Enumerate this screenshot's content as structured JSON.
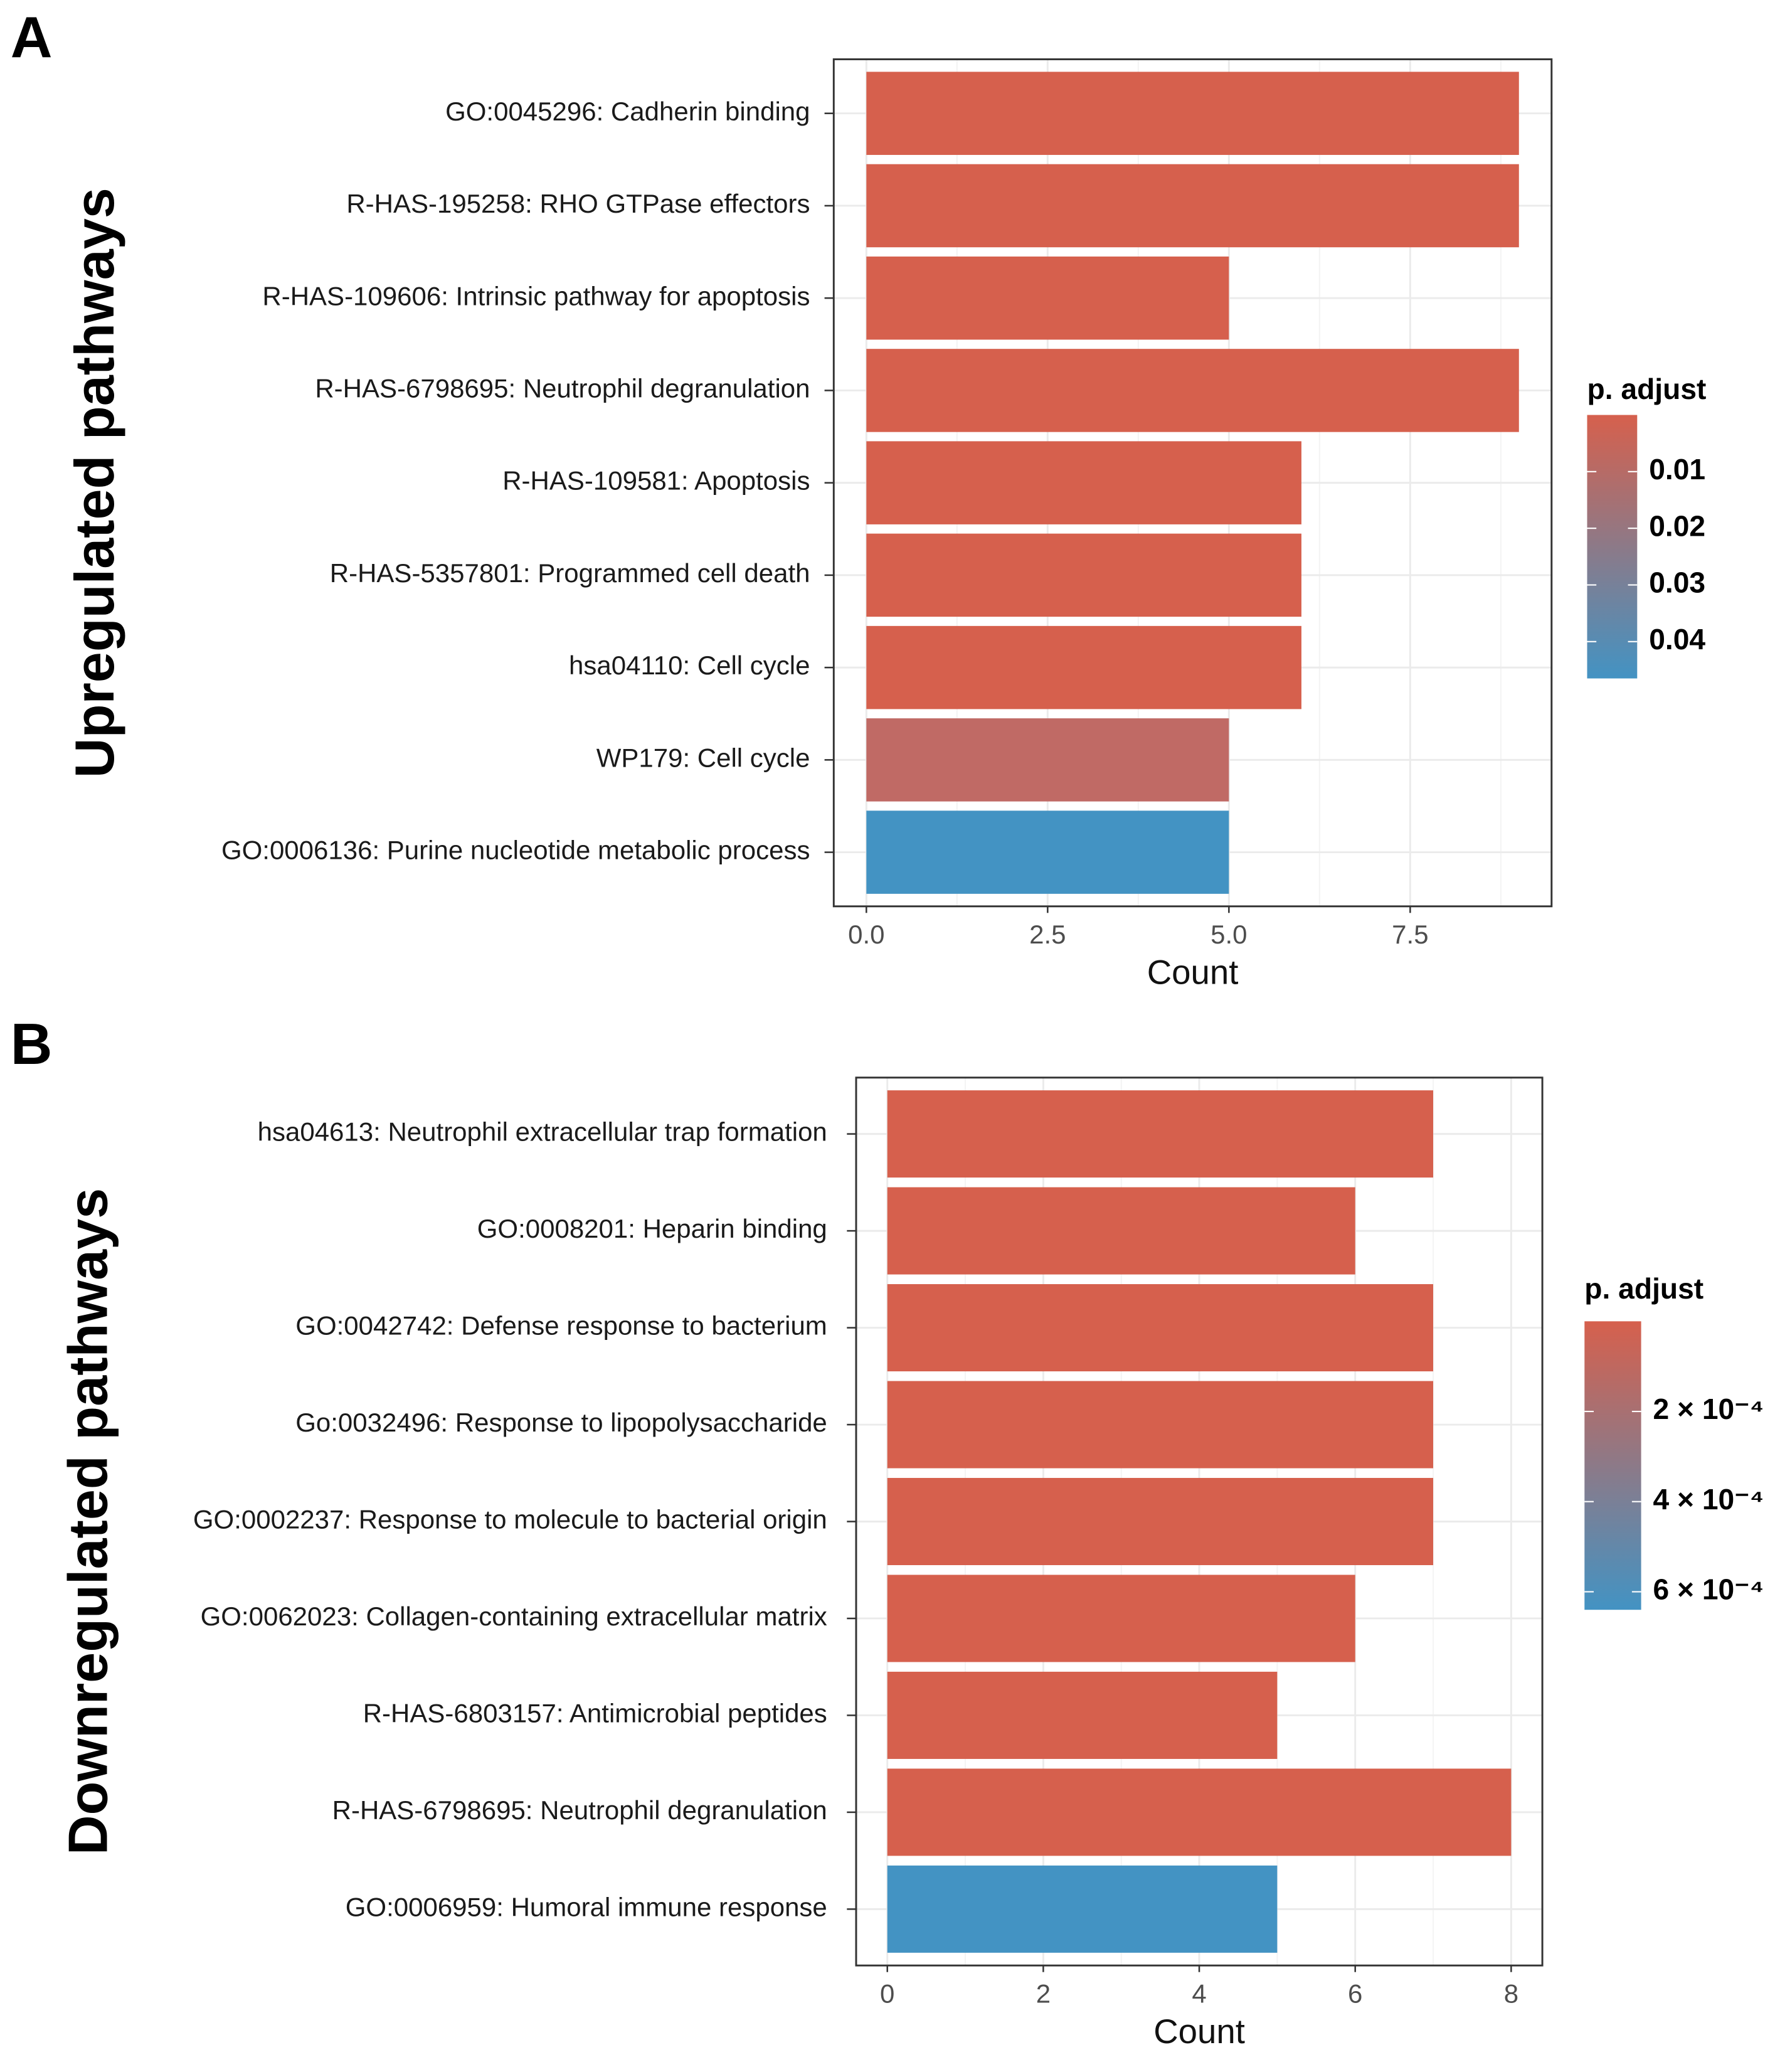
{
  "chart_data": [
    {
      "type": "bar",
      "panel_label": "A",
      "ylabel": "Upregulated pathways",
      "xlabel": "Count",
      "categories": [
        "GO:0045296: Cadherin binding",
        "R-HAS-195258: RHO GTPase effectors",
        "R-HAS-109606: Intrinsic pathway for apoptosis",
        "R-HAS-6798695: Neutrophil degranulation",
        "R-HAS-109581: Apoptosis",
        "R-HAS-5357801: Programmed cell death",
        "hsa04110: Cell cycle",
        "WP179: Cell cycle",
        "GO:0006136: Purine nucleotide metabolic process"
      ],
      "values": [
        9,
        9,
        5,
        9,
        6,
        6,
        6,
        5,
        5
      ],
      "colors": [
        "#d6604d",
        "#d6604d",
        "#d6604d",
        "#d6604d",
        "#d6604d",
        "#d6604d",
        "#d6604d",
        "#c06a65",
        "#4393c3"
      ],
      "xlim": [
        -0.45,
        9.45
      ],
      "xticks": [
        {
          "value": 0,
          "label": "0.0"
        },
        2.5,
        {
          "value": 5,
          "label": "5.0"
        },
        7.5
      ],
      "grid": true,
      "colorbar": {
        "title": "p. adjust",
        "lim": [
          0,
          0.0465
        ],
        "colors": [
          "#d6604d",
          "#4393c3"
        ],
        "ticks": [
          0.01,
          0.02,
          0.03,
          0.04
        ]
      }
    },
    {
      "type": "bar",
      "panel_label": "B",
      "ylabel": "Downregulated pathways",
      "xlabel": "Count",
      "categories": [
        "hsa04613: Neutrophil extracellular trap formation",
        "GO:0008201: Heparin binding",
        "GO:0042742: Defense response to bacterium",
        "Go:0032496: Response to lipopolysaccharide",
        "GO:0002237: Response to molecule to bacterial origin",
        "GO:0062023: Collagen-containing extracellular matrix",
        "R-HAS-6803157: Antimicrobial peptides",
        "R-HAS-6798695: Neutrophil degranulation",
        "GO:0006959: Humoral immune response"
      ],
      "values": [
        7,
        6,
        7,
        7,
        7,
        6,
        5,
        8,
        5
      ],
      "colors": [
        "#d6604d",
        "#d6604d",
        "#d6604d",
        "#d6604d",
        "#d6604d",
        "#d6604d",
        "#d6604d",
        "#d6604d",
        "#4393c3"
      ],
      "xlim": [
        -0.4,
        8.4
      ],
      "xticks": [
        0,
        2,
        4,
        6,
        8
      ],
      "grid": true,
      "colorbar": {
        "title": "p. adjust",
        "lim": [
          0,
          0.00064
        ],
        "colors": [
          "#d6604d",
          "#4393c3"
        ],
        "ticks": [
          {
            "value": 0.0002,
            "label": "2 × 10⁻⁴"
          },
          {
            "value": 0.0004,
            "label": "4 × 10⁻⁴"
          },
          {
            "value": 0.0006,
            "label": "6 × 10⁻⁴"
          }
        ]
      }
    }
  ]
}
